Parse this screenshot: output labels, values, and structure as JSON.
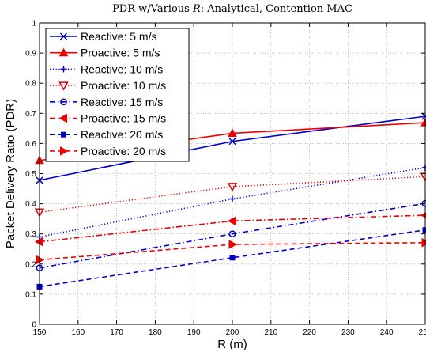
{
  "chart_data": {
    "type": "line",
    "title": "PDR w/Various R: Analytical, Contention MAC",
    "title_parts": {
      "prefix": "PDR w/Various ",
      "italic": "R",
      "suffix": ": Analytical, Contention MAC"
    },
    "xlabel": "R (m)",
    "ylabel": "Packet Delivery Ratio (PDR)",
    "xlim": [
      150,
      250
    ],
    "ylim": [
      0,
      1
    ],
    "xticks": [
      150,
      160,
      170,
      180,
      190,
      200,
      210,
      220,
      230,
      240,
      250
    ],
    "yticks": [
      0,
      0.1,
      0.2,
      0.3,
      0.4,
      0.5,
      0.6,
      0.7,
      0.8,
      0.9,
      1
    ],
    "grid": true,
    "legend_position": "top-left",
    "x": [
      150,
      200,
      250
    ],
    "series": [
      {
        "name": "Reactive: 5 m/s",
        "values": [
          0.478,
          0.607,
          0.69
        ],
        "color": "#0000cc",
        "dash": "solid",
        "marker": "x"
      },
      {
        "name": "Proactive: 5 m/s",
        "values": [
          0.544,
          0.634,
          0.669
        ],
        "color": "#ee0000",
        "dash": "solid",
        "marker": "triangle-up"
      },
      {
        "name": "Reactive: 10 m/s",
        "values": [
          0.29,
          0.416,
          0.52
        ],
        "color": "#0000cc",
        "dash": "dotted",
        "marker": "plus"
      },
      {
        "name": "Proactive: 10 m/s",
        "values": [
          0.372,
          0.457,
          0.49
        ],
        "color": "#ee0000",
        "dash": "dotted",
        "marker": "triangle-down"
      },
      {
        "name": "Reactive: 15 m/s",
        "values": [
          0.187,
          0.3,
          0.401
        ],
        "color": "#0000cc",
        "dash": "dashdot",
        "marker": "circle"
      },
      {
        "name": "Proactive: 15 m/s",
        "values": [
          0.274,
          0.343,
          0.362
        ],
        "color": "#ee0000",
        "dash": "dashdot",
        "marker": "triangle-left"
      },
      {
        "name": "Reactive: 20 m/s",
        "values": [
          0.125,
          0.221,
          0.313
        ],
        "color": "#0000cc",
        "dash": "dashed",
        "marker": "square"
      },
      {
        "name": "Proactive: 20 m/s",
        "values": [
          0.214,
          0.265,
          0.271
        ],
        "color": "#ee0000",
        "dash": "dashed",
        "marker": "triangle-right"
      }
    ]
  }
}
